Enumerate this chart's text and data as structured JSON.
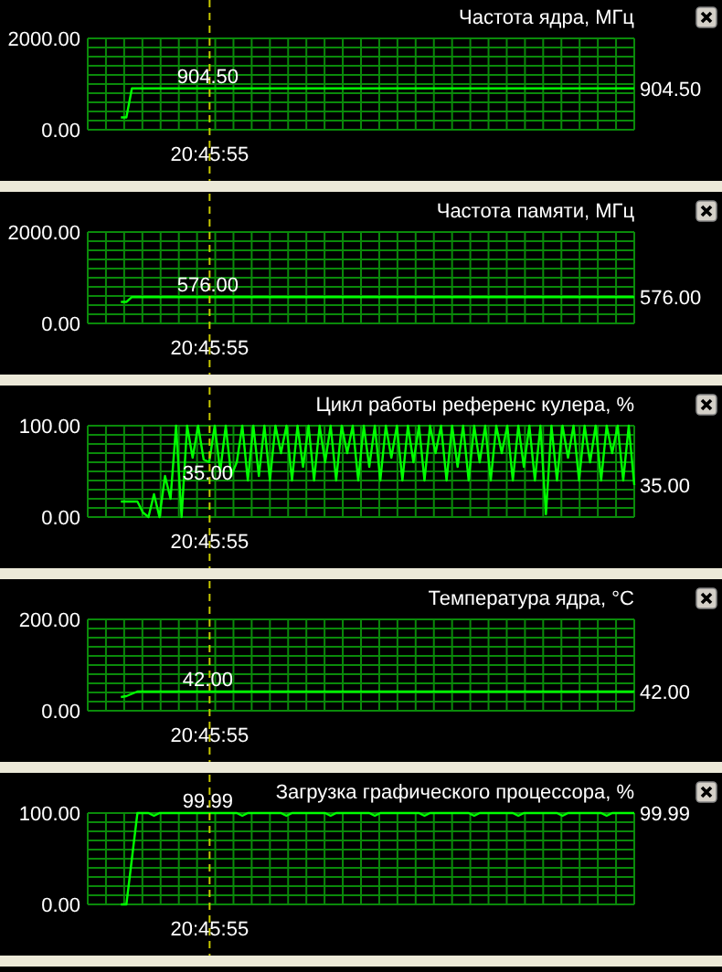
{
  "chart_data": [
    {
      "type": "line",
      "title": "Частота ядра, МГц",
      "ylim": [
        0,
        2000
      ],
      "grid": true,
      "tick_labels": "y",
      "line_style": "solid",
      "yticks": [
        {
          "value": 0,
          "label": "0.00"
        },
        {
          "value": 200,
          "label": null
        },
        {
          "value": 400,
          "label": null
        },
        {
          "value": 600,
          "label": null
        },
        {
          "value": 800,
          "label": null
        },
        {
          "value": 1000,
          "label": null
        },
        {
          "value": 1200,
          "label": null
        },
        {
          "value": 1400,
          "label": null
        },
        {
          "value": 1600,
          "label": null
        },
        {
          "value": 1800,
          "label": null
        },
        {
          "value": 2000,
          "label": "2000.00"
        }
      ],
      "categories": [
        null,
        null,
        null,
        null,
        null,
        null,
        null,
        null,
        null,
        null,
        null,
        null,
        null,
        null,
        null,
        null,
        null,
        null,
        null,
        null,
        null,
        null,
        null,
        null,
        null,
        null,
        null,
        null,
        null,
        null,
        null,
        null,
        null,
        null,
        null,
        null,
        null,
        null,
        null,
        null,
        null,
        null,
        null,
        null,
        null,
        null,
        null,
        null,
        null,
        null,
        null,
        null,
        null,
        null,
        null,
        null,
        null,
        null,
        null,
        null,
        null,
        null,
        null,
        null,
        null,
        null,
        null,
        null,
        null,
        null,
        null,
        null,
        null,
        null,
        null,
        null,
        null,
        null,
        null,
        null,
        null,
        null,
        null,
        null,
        null,
        null,
        null,
        null,
        null,
        null,
        null,
        null,
        null,
        null,
        null,
        null,
        null,
        null,
        null,
        null
      ],
      "series": [
        {
          "color": "#00ff00",
          "values": [
            null,
            null,
            null,
            null,
            null,
            null,
            270,
            270,
            904.5,
            904.5,
            904.5,
            904.5,
            904.5,
            904.5,
            904.5,
            904.5,
            904.5,
            904.5,
            904.5,
            904.5,
            904.5,
            904.5,
            904.5,
            904.5,
            904.5,
            904.5,
            904.5,
            904.5,
            904.5,
            904.5,
            904.5,
            904.5,
            904.5,
            904.5,
            904.5,
            904.5,
            904.5,
            904.5,
            904.5,
            904.5,
            904.5,
            904.5,
            904.5,
            904.5,
            904.5,
            904.5,
            904.5,
            904.5,
            904.5,
            904.5,
            904.5,
            904.5,
            904.5,
            904.5,
            904.5,
            904.5,
            904.5,
            904.5,
            904.5,
            904.5,
            904.5,
            904.5,
            904.5,
            904.5,
            904.5,
            904.5,
            904.5,
            904.5,
            904.5,
            904.5,
            904.5,
            904.5,
            904.5,
            904.5,
            904.5,
            904.5,
            904.5,
            904.5,
            904.5,
            904.5,
            904.5,
            904.5,
            904.5,
            904.5,
            904.5,
            904.5,
            904.5,
            904.5,
            904.5,
            904.5,
            904.5,
            904.5,
            904.5,
            904.5,
            904.5,
            904.5,
            904.5,
            904.5,
            904.5,
            904.5
          ]
        }
      ],
      "annotations": [
        "20:45:55",
        "904.50",
        "904.50"
      ]
    },
    {
      "type": "line",
      "title": "Частота памяти, МГц",
      "ylim": [
        0,
        2000
      ],
      "grid": true,
      "tick_labels": "y",
      "line_style": "solid",
      "yticks": [
        {
          "value": 0,
          "label": "0.00"
        },
        {
          "value": 200,
          "label": null
        },
        {
          "value": 400,
          "label": null
        },
        {
          "value": 600,
          "label": null
        },
        {
          "value": 800,
          "label": null
        },
        {
          "value": 1000,
          "label": null
        },
        {
          "value": 1200,
          "label": null
        },
        {
          "value": 1400,
          "label": null
        },
        {
          "value": 1600,
          "label": null
        },
        {
          "value": 1800,
          "label": null
        },
        {
          "value": 2000,
          "label": "2000.00"
        }
      ],
      "categories": [
        null,
        null,
        null,
        null,
        null,
        null,
        null,
        null,
        null,
        null,
        null,
        null,
        null,
        null,
        null,
        null,
        null,
        null,
        null,
        null,
        null,
        null,
        null,
        null,
        null,
        null,
        null,
        null,
        null,
        null,
        null,
        null,
        null,
        null,
        null,
        null,
        null,
        null,
        null,
        null,
        null,
        null,
        null,
        null,
        null,
        null,
        null,
        null,
        null,
        null,
        null,
        null,
        null,
        null,
        null,
        null,
        null,
        null,
        null,
        null,
        null,
        null,
        null,
        null,
        null,
        null,
        null,
        null,
        null,
        null,
        null,
        null,
        null,
        null,
        null,
        null,
        null,
        null,
        null,
        null,
        null,
        null,
        null,
        null,
        null,
        null,
        null,
        null,
        null,
        null,
        null,
        null,
        null,
        null,
        null,
        null,
        null,
        null,
        null,
        null
      ],
      "series": [
        {
          "color": "#00ff00",
          "values": [
            null,
            null,
            null,
            null,
            null,
            null,
            470,
            470,
            576,
            576,
            576,
            576,
            576,
            576,
            576,
            576,
            576,
            576,
            576,
            576,
            576,
            576,
            576,
            576,
            576,
            576,
            576,
            576,
            576,
            576,
            576,
            576,
            576,
            576,
            576,
            576,
            576,
            576,
            576,
            576,
            576,
            576,
            576,
            576,
            576,
            576,
            576,
            576,
            576,
            576,
            576,
            576,
            576,
            576,
            576,
            576,
            576,
            576,
            576,
            576,
            576,
            576,
            576,
            576,
            576,
            576,
            576,
            576,
            576,
            576,
            576,
            576,
            576,
            576,
            576,
            576,
            576,
            576,
            576,
            576,
            576,
            576,
            576,
            576,
            576,
            576,
            576,
            576,
            576,
            576,
            576,
            576,
            576,
            576,
            576,
            576,
            576,
            576,
            576,
            576
          ]
        }
      ],
      "annotations": [
        "20:45:55",
        "576.00",
        "576.00"
      ]
    },
    {
      "type": "line",
      "title": "Цикл работы референс кулера, %",
      "ylim": [
        0,
        100
      ],
      "grid": true,
      "tick_labels": "y",
      "line_style": "solid",
      "yticks": [
        {
          "value": 0,
          "label": "0.00"
        },
        {
          "value": 10,
          "label": null
        },
        {
          "value": 20,
          "label": null
        },
        {
          "value": 30,
          "label": null
        },
        {
          "value": 40,
          "label": null
        },
        {
          "value": 50,
          "label": null
        },
        {
          "value": 60,
          "label": null
        },
        {
          "value": 70,
          "label": null
        },
        {
          "value": 80,
          "label": null
        },
        {
          "value": 90,
          "label": null
        },
        {
          "value": 100,
          "label": "100.00"
        }
      ],
      "categories": [
        null,
        null,
        null,
        null,
        null,
        null,
        null,
        null,
        null,
        null,
        null,
        null,
        null,
        null,
        null,
        null,
        null,
        null,
        null,
        null,
        null,
        null,
        null,
        null,
        null,
        null,
        null,
        null,
        null,
        null,
        null,
        null,
        null,
        null,
        null,
        null,
        null,
        null,
        null,
        null,
        null,
        null,
        null,
        null,
        null,
        null,
        null,
        null,
        null,
        null,
        null,
        null,
        null,
        null,
        null,
        null,
        null,
        null,
        null,
        null,
        null,
        null,
        null,
        null,
        null,
        null,
        null,
        null,
        null,
        null,
        null,
        null,
        null,
        null,
        null,
        null,
        null,
        null,
        null,
        null,
        null,
        null,
        null,
        null,
        null,
        null,
        null,
        null,
        null,
        null,
        null,
        null,
        null,
        null,
        null,
        null,
        null,
        null,
        null,
        null
      ],
      "series": [
        {
          "color": "#00ff00",
          "values": [
            null,
            null,
            null,
            null,
            null,
            null,
            17,
            17,
            17,
            17,
            5,
            0,
            25,
            0,
            45,
            20,
            100,
            0,
            100,
            65,
            100,
            63,
            60,
            100,
            50,
            100,
            45,
            60,
            100,
            40,
            100,
            45,
            100,
            40,
            100,
            70,
            100,
            40,
            100,
            55,
            100,
            40,
            100,
            60,
            100,
            40,
            100,
            70,
            100,
            40,
            100,
            55,
            100,
            40,
            100,
            65,
            100,
            40,
            100,
            60,
            100,
            40,
            100,
            70,
            100,
            40,
            100,
            55,
            100,
            40,
            100,
            60,
            100,
            40,
            100,
            70,
            100,
            40,
            100,
            55,
            100,
            40,
            100,
            3,
            100,
            40,
            100,
            65,
            100,
            40,
            100,
            60,
            100,
            40,
            100,
            70,
            100,
            40,
            100,
            35
          ]
        }
      ],
      "annotations": [
        "20:45:55",
        "35.00",
        "35.00"
      ]
    },
    {
      "type": "line",
      "title": "Температура ядра, °C",
      "ylim": [
        0,
        200
      ],
      "grid": true,
      "tick_labels": "y",
      "line_style": "solid",
      "yticks": [
        {
          "value": 0,
          "label": "0.00"
        },
        {
          "value": 20,
          "label": null
        },
        {
          "value": 40,
          "label": null
        },
        {
          "value": 60,
          "label": null
        },
        {
          "value": 80,
          "label": null
        },
        {
          "value": 100,
          "label": null
        },
        {
          "value": 120,
          "label": null
        },
        {
          "value": 140,
          "label": null
        },
        {
          "value": 160,
          "label": null
        },
        {
          "value": 180,
          "label": null
        },
        {
          "value": 200,
          "label": "200.00"
        }
      ],
      "categories": [
        null,
        null,
        null,
        null,
        null,
        null,
        null,
        null,
        null,
        null,
        null,
        null,
        null,
        null,
        null,
        null,
        null,
        null,
        null,
        null,
        null,
        null,
        null,
        null,
        null,
        null,
        null,
        null,
        null,
        null,
        null,
        null,
        null,
        null,
        null,
        null,
        null,
        null,
        null,
        null,
        null,
        null,
        null,
        null,
        null,
        null,
        null,
        null,
        null,
        null,
        null,
        null,
        null,
        null,
        null,
        null,
        null,
        null,
        null,
        null,
        null,
        null,
        null,
        null,
        null,
        null,
        null,
        null,
        null,
        null,
        null,
        null,
        null,
        null,
        null,
        null,
        null,
        null,
        null,
        null,
        null,
        null,
        null,
        null,
        null,
        null,
        null,
        null,
        null,
        null,
        null,
        null,
        null,
        null,
        null,
        null,
        null,
        null,
        null,
        null
      ],
      "series": [
        {
          "color": "#00ff00",
          "values": [
            null,
            null,
            null,
            null,
            null,
            null,
            30,
            32,
            37,
            42,
            42,
            42,
            42,
            42,
            42,
            42,
            42,
            42,
            42,
            42,
            42,
            42,
            42,
            42,
            42,
            42,
            42,
            42,
            42,
            42,
            42,
            42,
            42,
            42,
            42,
            42,
            42,
            42,
            42,
            42,
            42,
            42,
            42,
            42,
            42,
            42,
            42,
            42,
            42,
            42,
            42,
            42,
            42,
            42,
            42,
            42,
            42,
            42,
            42,
            42,
            42,
            42,
            42,
            42,
            42,
            42,
            42,
            42,
            42,
            42,
            42,
            42,
            42,
            42,
            42,
            42,
            42,
            42,
            42,
            42,
            42,
            42,
            42,
            42,
            42,
            42,
            42,
            42,
            42,
            42,
            42,
            42,
            42,
            42,
            42,
            42,
            42,
            42,
            42,
            42
          ]
        }
      ],
      "annotations": [
        "20:45:55",
        "42.00",
        "42.00"
      ]
    },
    {
      "type": "line",
      "title": "Загрузка графического процессора, %",
      "ylim": [
        0,
        100
      ],
      "grid": true,
      "tick_labels": "y",
      "line_style": "solid",
      "yticks": [
        {
          "value": 0,
          "label": "0.00"
        },
        {
          "value": 10,
          "label": null
        },
        {
          "value": 20,
          "label": null
        },
        {
          "value": 30,
          "label": null
        },
        {
          "value": 40,
          "label": null
        },
        {
          "value": 50,
          "label": null
        },
        {
          "value": 60,
          "label": null
        },
        {
          "value": 70,
          "label": null
        },
        {
          "value": 80,
          "label": null
        },
        {
          "value": 90,
          "label": null
        },
        {
          "value": 100,
          "label": "100.00"
        }
      ],
      "categories": [
        null,
        null,
        null,
        null,
        null,
        null,
        null,
        null,
        null,
        null,
        null,
        null,
        null,
        null,
        null,
        null,
        null,
        null,
        null,
        null,
        null,
        null,
        null,
        null,
        null,
        null,
        null,
        null,
        null,
        null,
        null,
        null,
        null,
        null,
        null,
        null,
        null,
        null,
        null,
        null,
        null,
        null,
        null,
        null,
        null,
        null,
        null,
        null,
        null,
        null,
        null,
        null,
        null,
        null,
        null,
        null,
        null,
        null,
        null,
        null,
        null,
        null,
        null,
        null,
        null,
        null,
        null,
        null,
        null,
        null,
        null,
        null,
        null,
        null,
        null,
        null,
        null,
        null,
        null,
        null,
        null,
        null,
        null,
        null,
        null,
        null,
        null,
        null,
        null,
        null,
        null,
        null,
        null,
        null,
        null,
        null,
        null,
        null,
        null,
        null
      ],
      "series": [
        {
          "color": "#00ff00",
          "values": [
            null,
            null,
            null,
            null,
            null,
            null,
            0,
            0,
            50,
            99.99,
            99.99,
            99.99,
            97,
            99.99,
            99.99,
            99.99,
            99.99,
            99.99,
            99.99,
            99.99,
            99.99,
            99.99,
            99.99,
            99.99,
            99.99,
            99.99,
            99.99,
            99.99,
            97,
            99.99,
            99.99,
            99.99,
            99.99,
            99.99,
            99.99,
            99.99,
            97,
            99.99,
            99.99,
            99.99,
            99.99,
            99.99,
            99.99,
            99.99,
            97,
            99.99,
            99.99,
            99.99,
            99.99,
            99.99,
            99.99,
            99.99,
            97,
            99.99,
            99.99,
            99.99,
            99.99,
            99.99,
            99.99,
            99.99,
            99.99,
            97,
            99.99,
            99.99,
            99.99,
            99.99,
            99.99,
            99.99,
            99.99,
            99.99,
            97,
            99.99,
            99.99,
            99.99,
            99.99,
            99.99,
            99.99,
            99.99,
            97,
            99.99,
            99.99,
            99.99,
            99.99,
            99.99,
            99.99,
            99.99,
            97,
            99.99,
            99.99,
            99.99,
            99.99,
            99.99,
            99.99,
            99.99,
            97,
            99.99,
            99.99,
            99.99,
            99.99,
            99.99
          ]
        }
      ],
      "annotations": [
        "20:45:55",
        "99.99",
        "99.99"
      ]
    }
  ]
}
